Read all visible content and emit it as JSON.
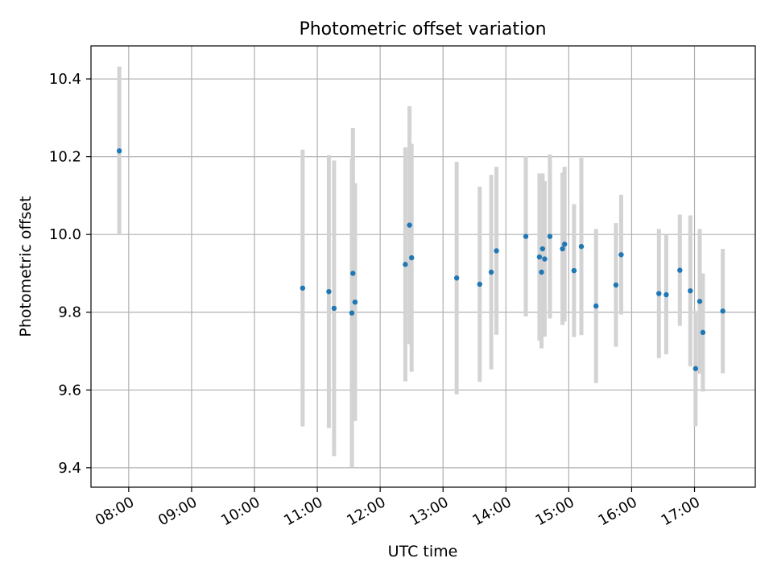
{
  "chart_data": {
    "type": "scatter",
    "title": "Photometric offset variation",
    "xlabel": "UTC time",
    "ylabel": "Photometric offset",
    "xlim": [
      "07:24",
      "17:58"
    ],
    "ylim": [
      9.35,
      10.485
    ],
    "x_ticks": [
      "08:00",
      "09:00",
      "10:00",
      "11:00",
      "12:00",
      "13:00",
      "14:00",
      "15:00",
      "16:00",
      "17:00"
    ],
    "y_ticks": [
      9.4,
      9.6,
      9.8,
      10.0,
      10.2,
      10.4
    ],
    "y_tick_labels": [
      "9.4",
      "9.6",
      "9.8",
      "10.0",
      "10.2",
      "10.4"
    ],
    "grid": true,
    "marker_color": "#1f77b4",
    "errorbar_color": "#d3d3d3",
    "points": [
      {
        "x": "07:51",
        "y": 10.215,
        "err": 0.217
      },
      {
        "x": "10:46",
        "y": 9.862,
        "err": 0.356
      },
      {
        "x": "11:11",
        "y": 9.853,
        "err": 0.351
      },
      {
        "x": "11:16",
        "y": 9.81,
        "err": 0.38
      },
      {
        "x": "11:33",
        "y": 9.798,
        "err": 0.397
      },
      {
        "x": "11:34",
        "y": 9.9,
        "err": 0.374
      },
      {
        "x": "11:36",
        "y": 9.826,
        "err": 0.306
      },
      {
        "x": "12:24",
        "y": 9.923,
        "err": 0.301
      },
      {
        "x": "12:28",
        "y": 10.024,
        "err": 0.306
      },
      {
        "x": "12:30",
        "y": 9.94,
        "err": 0.293
      },
      {
        "x": "13:13",
        "y": 9.888,
        "err": 0.299
      },
      {
        "x": "13:35",
        "y": 9.872,
        "err": 0.251
      },
      {
        "x": "13:46",
        "y": 9.903,
        "err": 0.25
      },
      {
        "x": "13:51",
        "y": 9.958,
        "err": 0.216
      },
      {
        "x": "14:19",
        "y": 9.995,
        "err": 0.206
      },
      {
        "x": "14:32",
        "y": 9.942,
        "err": 0.215
      },
      {
        "x": "14:34",
        "y": 9.903,
        "err": 0.196
      },
      {
        "x": "14:35",
        "y": 9.963,
        "err": 0.194
      },
      {
        "x": "14:37",
        "y": 9.937,
        "err": 0.2
      },
      {
        "x": "14:42",
        "y": 9.995,
        "err": 0.211
      },
      {
        "x": "14:54",
        "y": 9.963,
        "err": 0.196
      },
      {
        "x": "14:56",
        "y": 9.975,
        "err": 0.199
      },
      {
        "x": "15:05",
        "y": 9.907,
        "err": 0.171
      },
      {
        "x": "15:12",
        "y": 9.969,
        "err": 0.228
      },
      {
        "x": "15:26",
        "y": 9.816,
        "err": 0.198
      },
      {
        "x": "15:45",
        "y": 9.87,
        "err": 0.159
      },
      {
        "x": "15:50",
        "y": 9.948,
        "err": 0.154
      },
      {
        "x": "16:26",
        "y": 9.848,
        "err": 0.166
      },
      {
        "x": "16:33",
        "y": 9.845,
        "err": 0.153
      },
      {
        "x": "16:46",
        "y": 9.908,
        "err": 0.143
      },
      {
        "x": "16:56",
        "y": 9.855,
        "err": 0.194
      },
      {
        "x": "17:01",
        "y": 9.655,
        "err": 0.148
      },
      {
        "x": "17:05",
        "y": 9.828,
        "err": 0.186
      },
      {
        "x": "17:08",
        "y": 9.748,
        "err": 0.152
      },
      {
        "x": "17:27",
        "y": 9.803,
        "err": 0.16
      }
    ]
  }
}
